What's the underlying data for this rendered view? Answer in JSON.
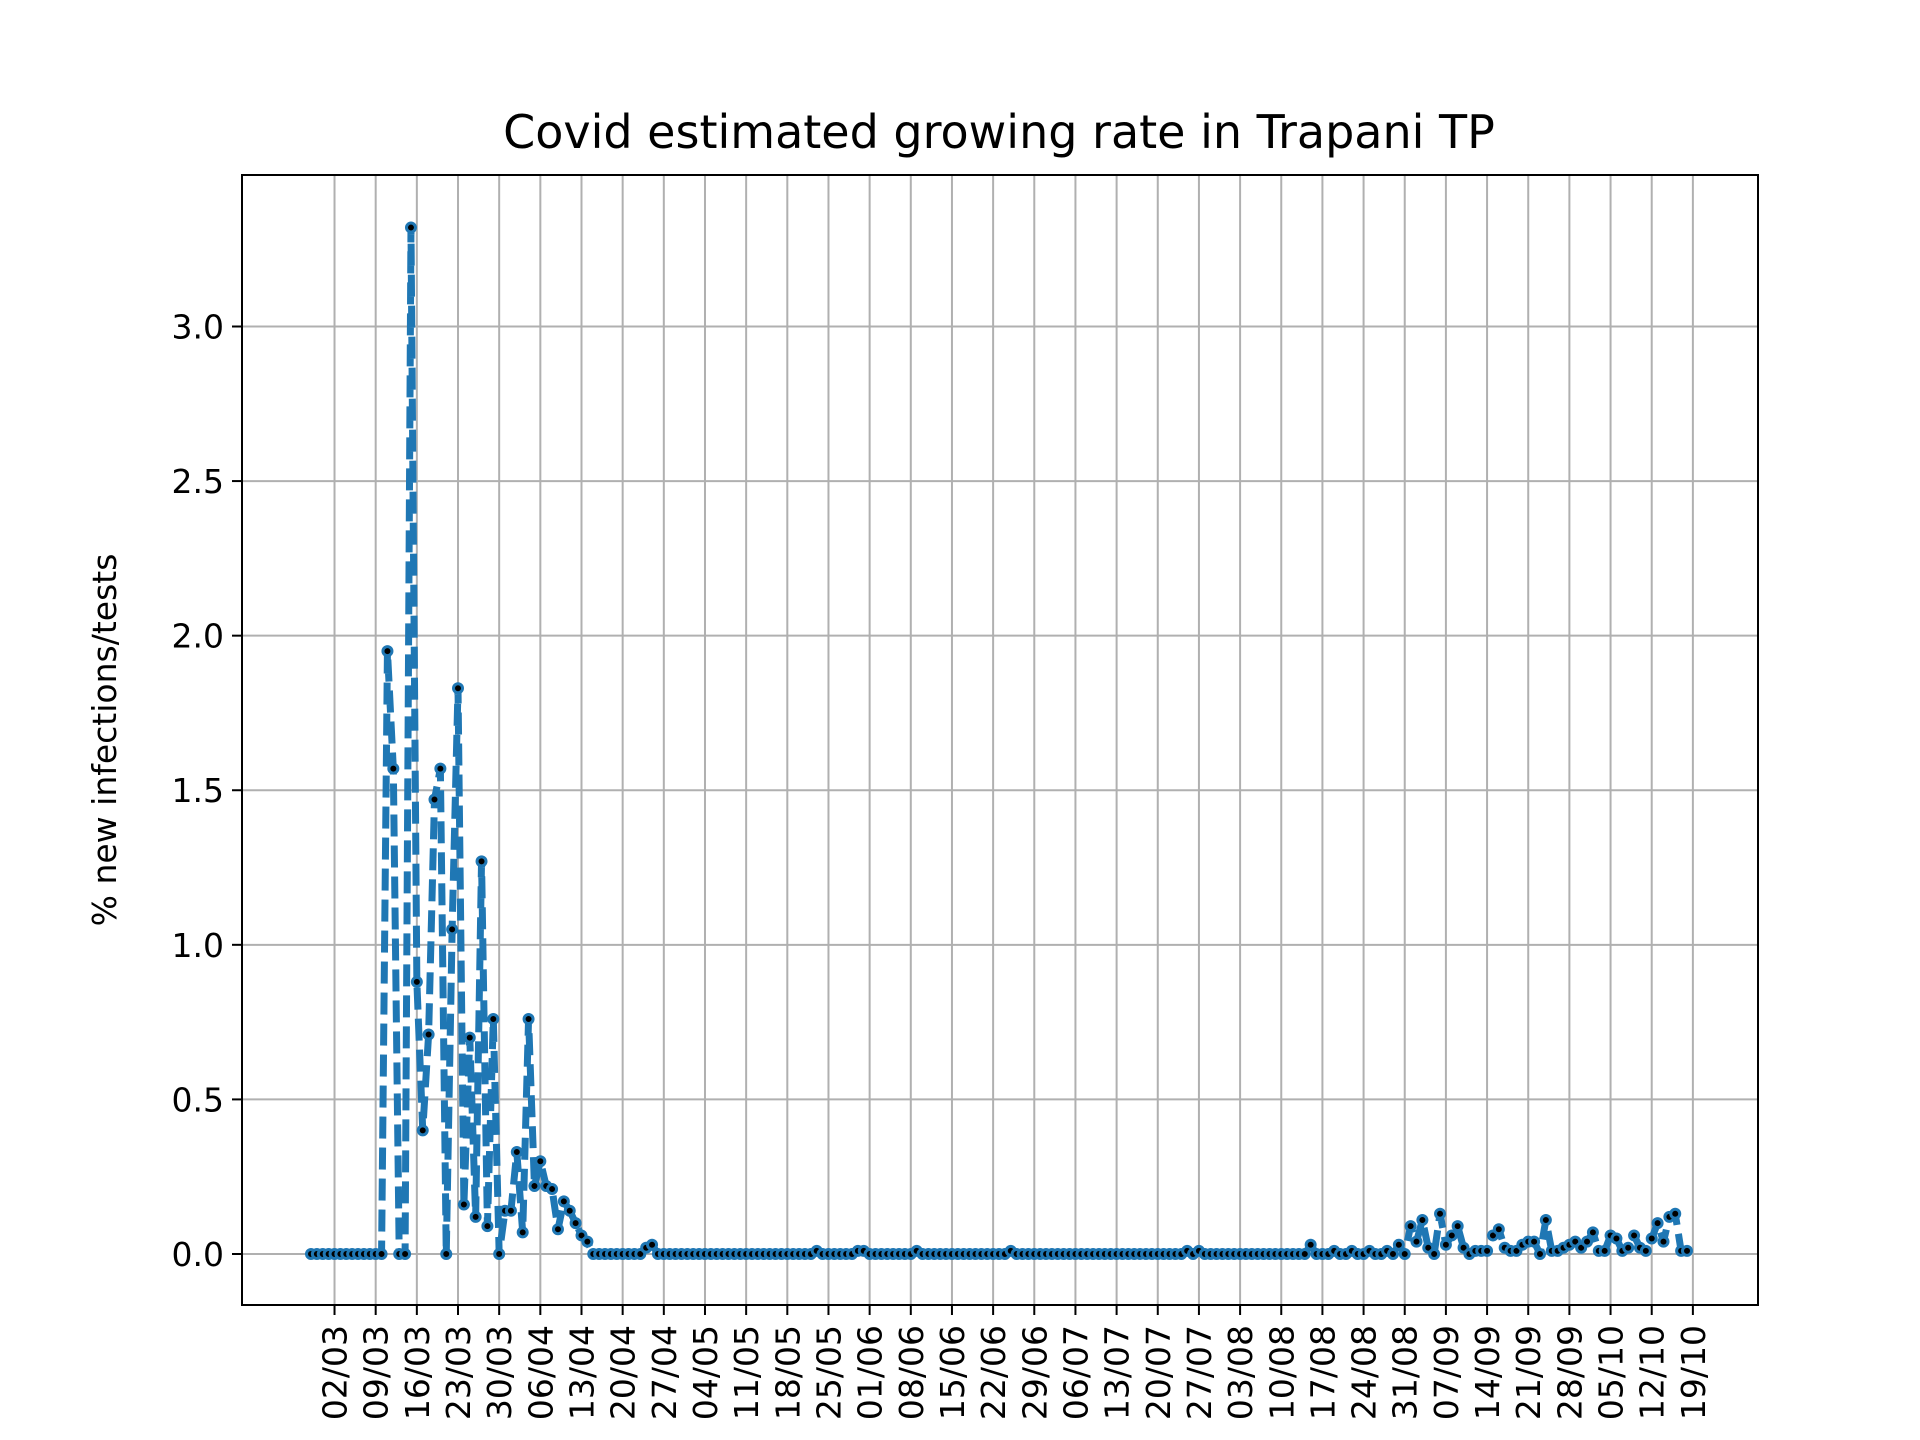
{
  "chart_data": {
    "type": "line",
    "title": "Covid estimated growing rate in Trapani TP",
    "xlabel": "",
    "ylabel": "% new infections/tests",
    "ylim": [
      -0.165,
      3.49
    ],
    "yticks": [
      "0.0",
      "0.5",
      "1.0",
      "1.5",
      "2.0",
      "2.5",
      "3.0"
    ],
    "grid": true,
    "line_color": "#1f77b4",
    "line_style": "dashed",
    "marker_color": "#000000",
    "xtick_labels": [
      "02/03",
      "09/03",
      "16/03",
      "23/03",
      "30/03",
      "06/04",
      "13/04",
      "20/04",
      "27/04",
      "04/05",
      "11/05",
      "18/05",
      "25/05",
      "01/06",
      "08/06",
      "15/06",
      "22/06",
      "29/06",
      "06/07",
      "13/07",
      "20/07",
      "27/07",
      "03/08",
      "10/08",
      "17/08",
      "24/08",
      "31/08",
      "07/09",
      "14/09",
      "21/09",
      "28/09",
      "05/10",
      "12/10",
      "19/10"
    ],
    "series": [
      {
        "values": [
          0,
          0,
          0,
          0,
          0,
          0,
          0,
          0,
          0,
          0,
          0,
          0,
          0,
          1.95,
          1.57,
          0,
          0,
          3.32,
          0.88,
          0.4,
          0.71,
          1.47,
          1.57,
          0,
          1.05,
          1.83,
          0.16,
          0.7,
          0.12,
          1.27,
          0.09,
          0.76,
          0,
          0.14,
          0.14,
          0.33,
          0.07,
          0.76,
          0.22,
          0.3,
          0.22,
          0.21,
          0.08,
          0.17,
          0.14,
          0.1,
          0.06,
          0.04,
          0,
          0,
          0,
          0,
          0,
          0,
          0,
          0,
          0,
          0.02,
          0.03,
          0,
          0,
          0,
          0,
          0,
          0,
          0,
          0,
          0,
          0,
          0,
          0,
          0,
          0,
          0,
          0,
          0,
          0,
          0,
          0,
          0,
          0,
          0,
          0,
          0,
          0,
          0,
          0.01,
          0,
          0,
          0,
          0,
          0,
          0,
          0.01,
          0.01,
          0,
          0,
          0,
          0,
          0,
          0,
          0,
          0,
          0.01,
          0,
          0,
          0,
          0,
          0,
          0,
          0,
          0,
          0,
          0,
          0,
          0,
          0,
          0,
          0,
          0.01,
          0,
          0,
          0,
          0,
          0,
          0,
          0,
          0,
          0,
          0,
          0,
          0,
          0,
          0,
          0,
          0,
          0,
          0,
          0,
          0,
          0,
          0,
          0,
          0,
          0,
          0,
          0,
          0,
          0,
          0.01,
          0,
          0.01,
          0,
          0,
          0,
          0,
          0,
          0,
          0,
          0,
          0,
          0,
          0,
          0,
          0,
          0,
          0,
          0,
          0,
          0,
          0.03,
          0,
          0,
          0,
          0.01,
          0,
          0,
          0.01,
          0,
          0,
          0.01,
          0,
          0,
          0.01,
          0,
          0.03,
          0,
          0.09,
          0.04,
          0.11,
          0.02,
          0,
          0.13,
          0.03,
          0.06,
          0.09,
          0.02,
          0,
          0.01,
          0.01,
          0.01,
          0.06,
          0.08,
          0.02,
          0.01,
          0.01,
          0.03,
          0.04,
          0.04,
          0,
          0.11,
          0.01,
          0.01,
          0.02,
          0.03,
          0.04,
          0.02,
          0.04,
          0.07,
          0.01,
          0.01,
          0.06,
          0.05,
          0.01,
          0.02,
          0.06,
          0.02,
          0.01,
          0.05,
          0.1,
          0.04,
          0.12,
          0.13,
          0.01,
          0.01
        ]
      }
    ]
  }
}
